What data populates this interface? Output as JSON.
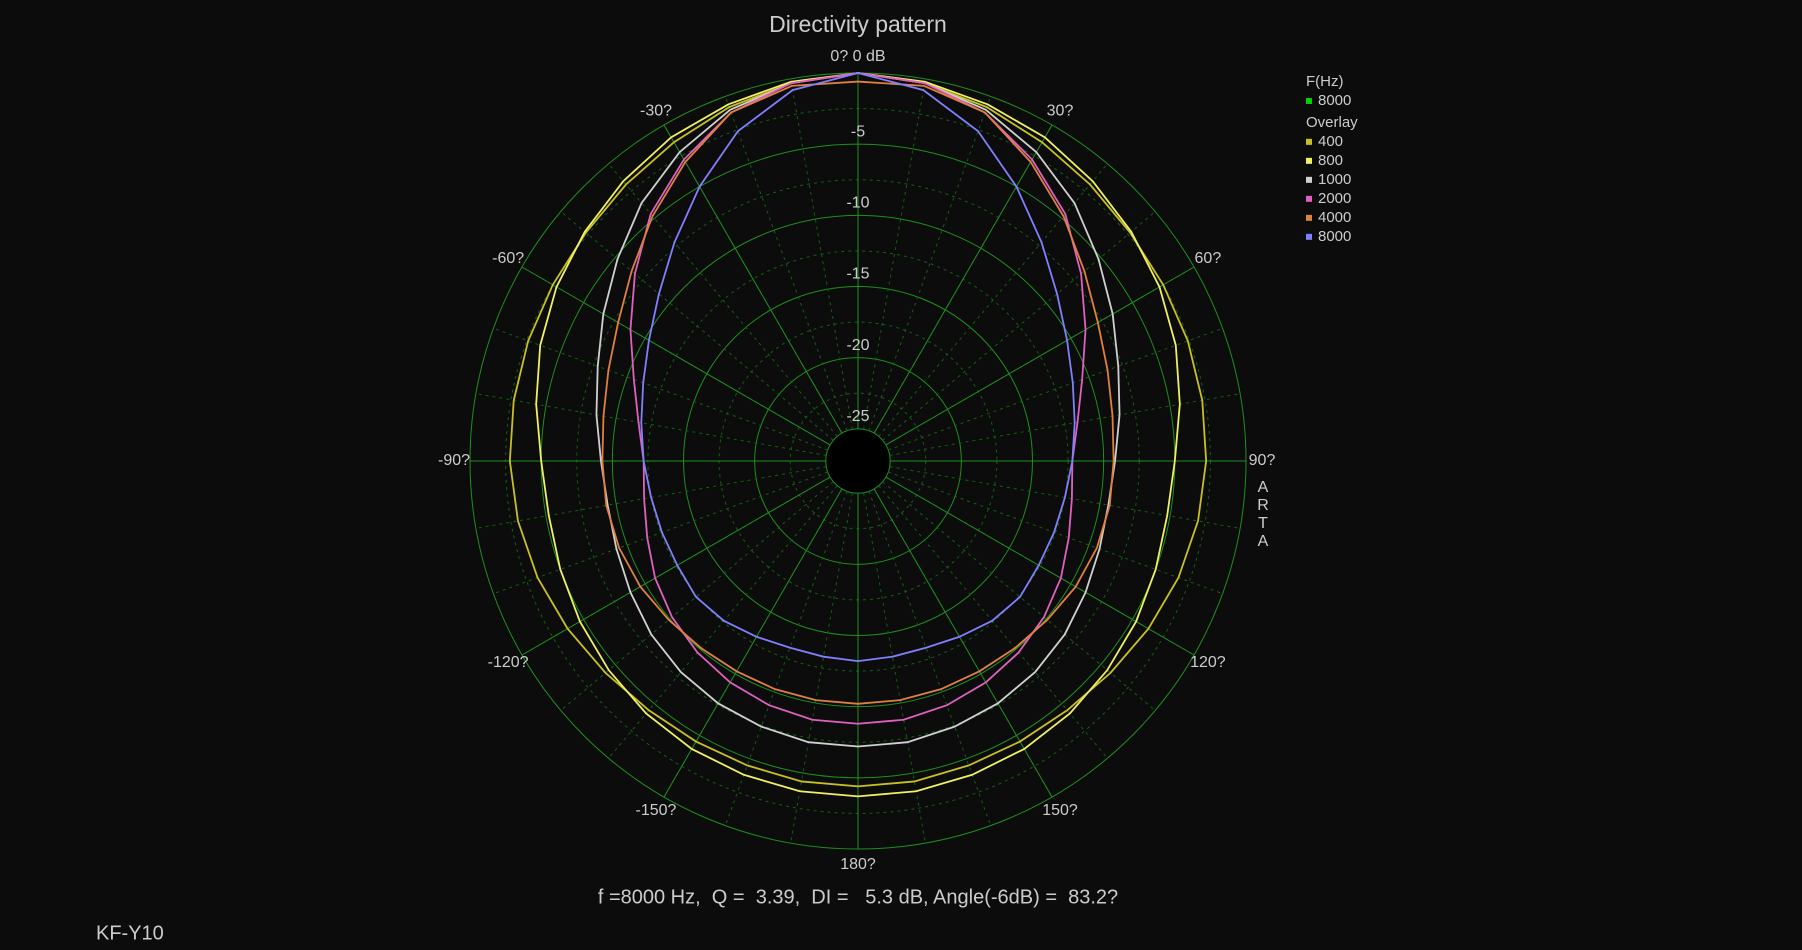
{
  "chart_data": {
    "type": "polar",
    "title": "Directivity pattern",
    "rlim": [
      -27.26,
      0
    ],
    "rticks": [
      -25,
      -20,
      -15,
      -10,
      -5
    ],
    "thetaticks": [
      {
        "value": 0,
        "label": "0? 0 dB"
      },
      {
        "value": 30,
        "label": "30?"
      },
      {
        "value": 60,
        "label": "60?"
      },
      {
        "value": 90,
        "label": "90?"
      },
      {
        "value": 120,
        "label": "120?"
      },
      {
        "value": 150,
        "label": "150?"
      },
      {
        "value": 180,
        "label": "180?"
      },
      {
        "value": -150,
        "label": "-150?"
      },
      {
        "value": -120,
        "label": "-120?"
      },
      {
        "value": -90,
        "label": "-90?"
      },
      {
        "value": -60,
        "label": "-60?"
      },
      {
        "value": -30,
        "label": "-30?"
      }
    ],
    "grid": true,
    "legend_position": "upper right",
    "current_title": "F(Hz)",
    "current": {
      "name": "8000",
      "color": "#00d000"
    },
    "overlay_title": "Overlay",
    "x": [
      -180,
      -170,
      -160,
      -150,
      -140,
      -130,
      -120,
      -110,
      -100,
      -90,
      -80,
      -70,
      -60,
      -50,
      -40,
      -30,
      -20,
      -10,
      0,
      10,
      20,
      30,
      40,
      50,
      60,
      70,
      80,
      90,
      100,
      110,
      120,
      130,
      140,
      150,
      160,
      170,
      180
    ],
    "series": [
      {
        "name": "400",
        "color": "#c8c020",
        "values": [
          -4.4,
          -4.4,
          -4.5,
          -4.5,
          -4.4,
          -4.1,
          -3.7,
          -3.3,
          -3.0,
          -2.8,
          -2.7,
          -2.6,
          -2.5,
          -2.3,
          -1.9,
          -1.4,
          -0.8,
          -0.3,
          0,
          -0.3,
          -0.8,
          -1.4,
          -1.9,
          -2.3,
          -2.5,
          -2.6,
          -2.7,
          -2.8,
          -3.0,
          -3.3,
          -3.7,
          -4.1,
          -4.4,
          -4.5,
          -4.5,
          -4.4,
          -4.4
        ]
      },
      {
        "name": "800",
        "color": "#f0f060",
        "values": [
          -3.7,
          -3.7,
          -3.8,
          -3.9,
          -4.1,
          -4.4,
          -4.7,
          -5.0,
          -5.2,
          -5.0,
          -4.3,
          -3.5,
          -2.8,
          -2.2,
          -1.6,
          -1.0,
          -0.6,
          -0.2,
          0,
          -0.2,
          -0.6,
          -1.0,
          -1.6,
          -2.2,
          -2.8,
          -3.5,
          -4.3,
          -5.0,
          -5.2,
          -5.0,
          -4.7,
          -4.4,
          -4.1,
          -3.9,
          -3.8,
          -3.7,
          -3.7
        ]
      },
      {
        "name": "1000",
        "color": "#d0d0d0",
        "values": [
          -7.2,
          -7.2,
          -7.4,
          -7.6,
          -7.9,
          -8.3,
          -8.8,
          -9.2,
          -9.4,
          -9.2,
          -8.6,
          -7.8,
          -6.6,
          -5.2,
          -3.6,
          -2.2,
          -1.0,
          -0.3,
          0,
          -0.3,
          -1.0,
          -2.2,
          -3.6,
          -5.2,
          -6.6,
          -7.8,
          -8.6,
          -9.2,
          -9.4,
          -9.2,
          -8.8,
          -8.3,
          -7.9,
          -7.6,
          -7.4,
          -7.2,
          -7.2
        ]
      },
      {
        "name": "2000",
        "color": "#e060c0",
        "values": [
          -8.8,
          -8.8,
          -9.0,
          -9.3,
          -9.7,
          -10.2,
          -10.8,
          -11.5,
          -12.0,
          -12.2,
          -11.6,
          -10.5,
          -8.8,
          -6.8,
          -4.6,
          -2.8,
          -1.2,
          -0.3,
          0,
          -0.3,
          -1.2,
          -2.8,
          -4.6,
          -6.8,
          -8.8,
          -10.5,
          -11.6,
          -12.2,
          -12.0,
          -11.5,
          -10.8,
          -10.2,
          -9.7,
          -9.3,
          -9.0,
          -8.8,
          -8.8
        ]
      },
      {
        "name": "4000",
        "color": "#e08040",
        "values": [
          -10.2,
          -10.2,
          -10.2,
          -10.2,
          -10.1,
          -9.9,
          -9.6,
          -9.4,
          -9.3,
          -9.3,
          -9.1,
          -8.6,
          -7.8,
          -6.5,
          -4.8,
          -3.0,
          -1.2,
          -0.5,
          -0.6,
          -0.5,
          -1.2,
          -3.0,
          -4.8,
          -6.5,
          -7.8,
          -8.6,
          -9.1,
          -9.3,
          -9.3,
          -9.4,
          -9.6,
          -9.9,
          -10.1,
          -10.2,
          -10.2,
          -10.2,
          -10.2
        ]
      },
      {
        "name": "8000",
        "color": "#8080ff",
        "values": [
          -13.2,
          -13.3,
          -13.3,
          -13.0,
          -12.6,
          -12.4,
          -12.6,
          -12.6,
          -12.5,
          -12.2,
          -11.8,
          -11.2,
          -10.3,
          -9.0,
          -7.2,
          -5.0,
          -2.6,
          -0.8,
          0,
          -0.8,
          -2.6,
          -5.0,
          -7.2,
          -9.0,
          -10.3,
          -11.2,
          -11.8,
          -12.2,
          -12.5,
          -12.6,
          -12.6,
          -12.4,
          -12.6,
          -13.0,
          -13.3,
          -13.3,
          -13.2
        ]
      }
    ],
    "footer": "f =8000 Hz,  Q =  3.39,  DI =   5.3 dB, Angle(-6dB) =  83.2?",
    "label": "KF-Y10",
    "watermark": "ARTA"
  }
}
